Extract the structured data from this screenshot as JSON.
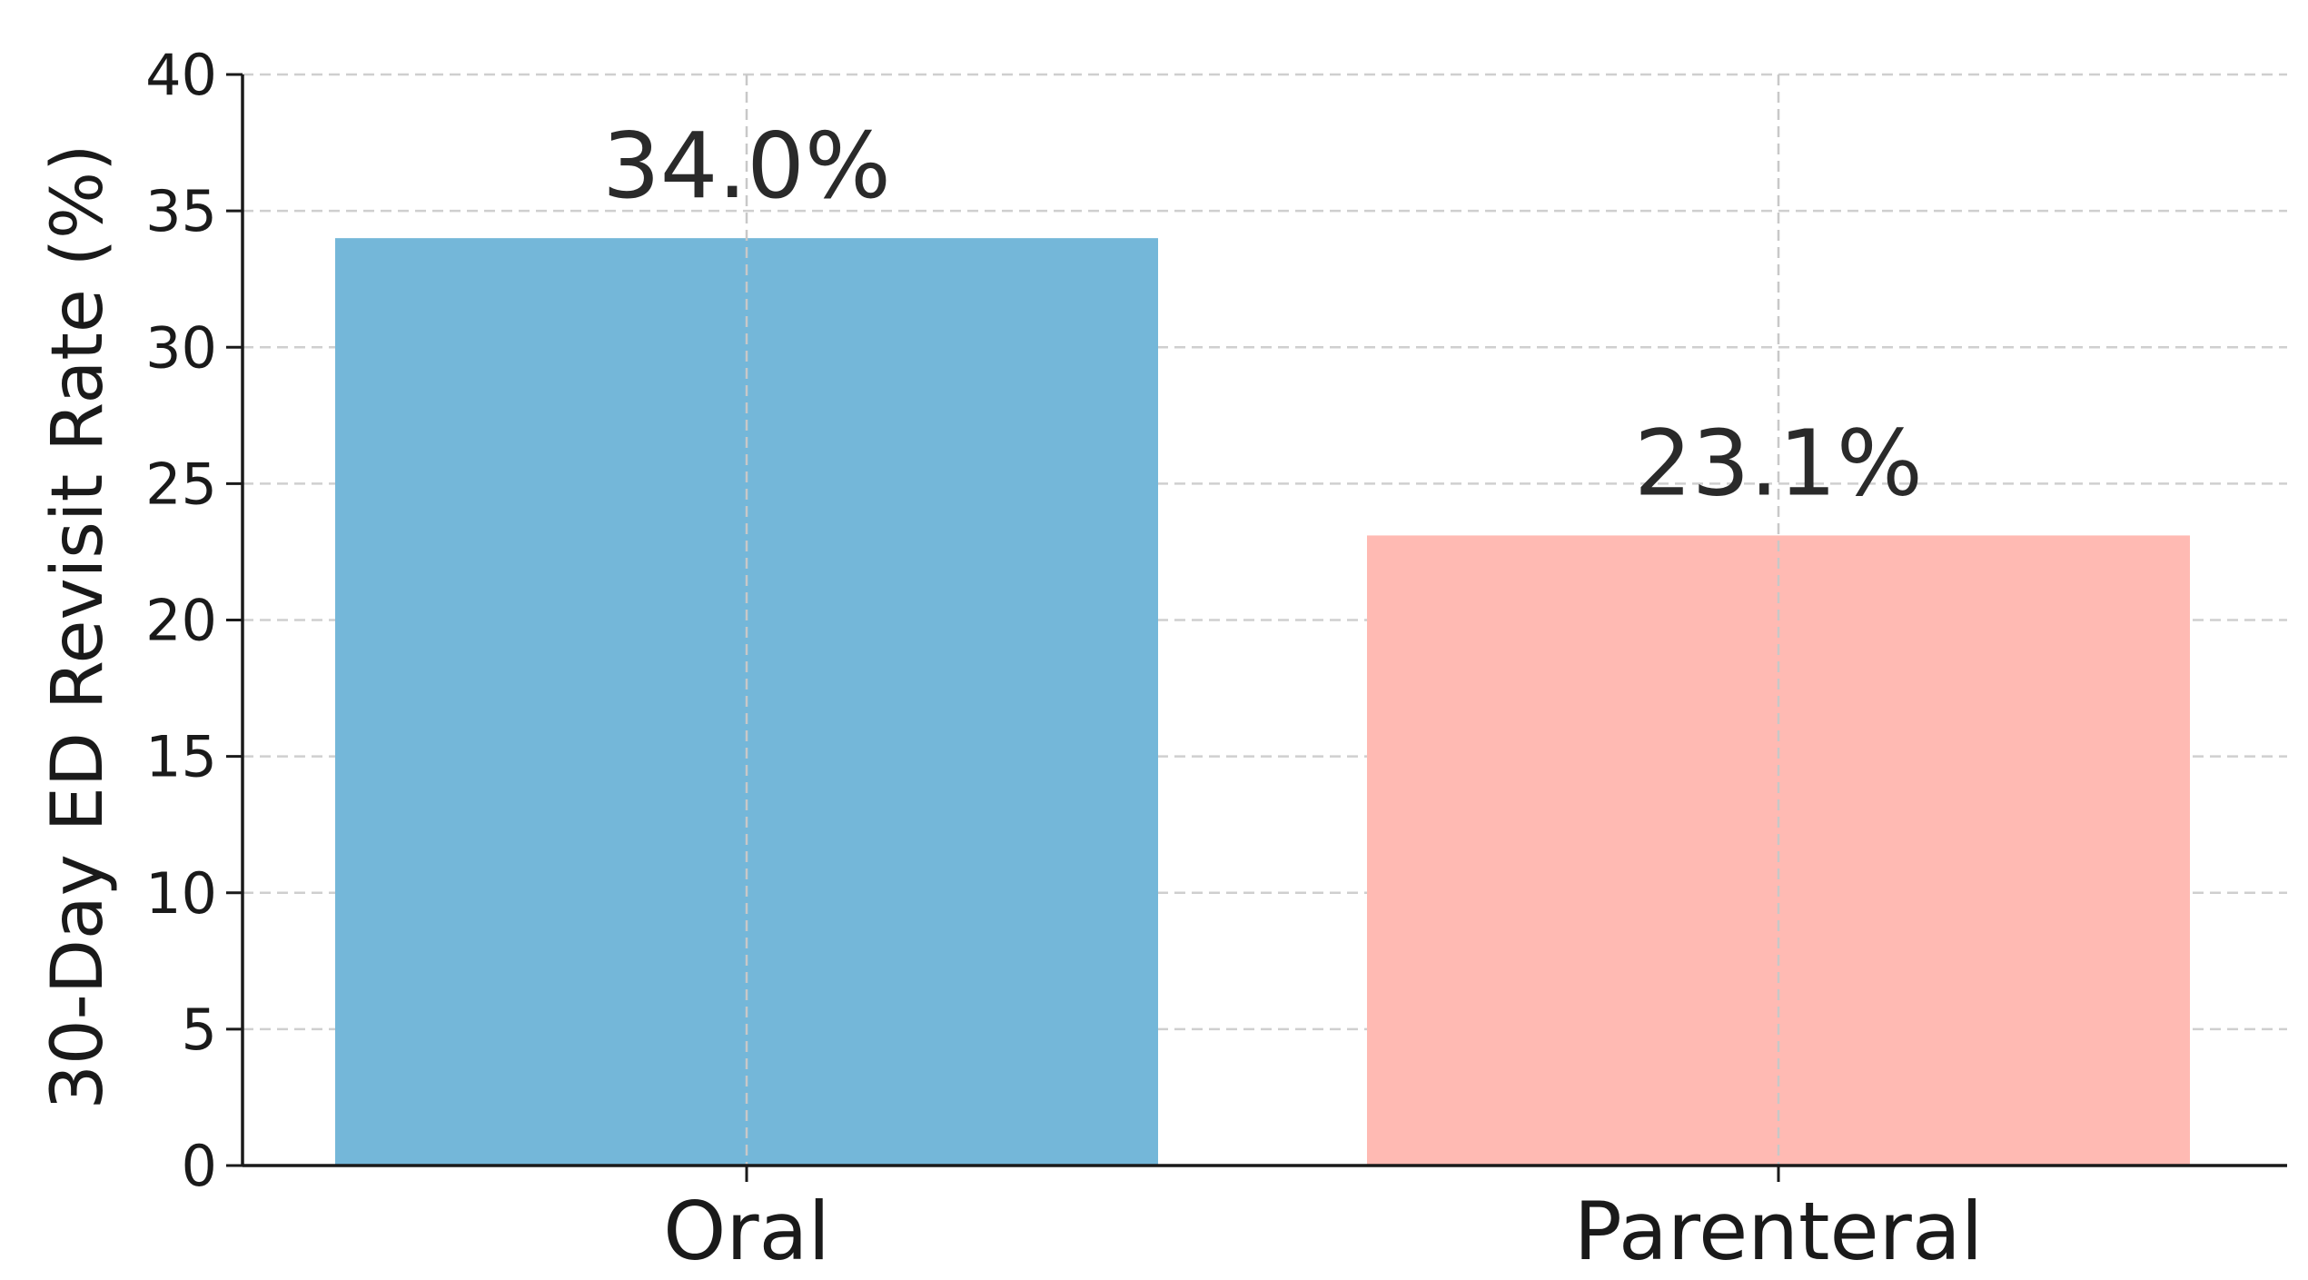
{
  "chart_data": {
    "type": "bar",
    "title": "",
    "xlabel": "",
    "ylabel": "30-Day ED Revisit Rate (%)",
    "categories": [
      "Oral",
      "Parenteral"
    ],
    "values": [
      34.0,
      23.1
    ],
    "data_labels": [
      "34.0%",
      "23.1%"
    ],
    "colors": [
      "#74b7d9",
      "#ffbab3"
    ],
    "ylim": [
      0,
      40
    ],
    "yticks": [
      0,
      5,
      10,
      15,
      20,
      25,
      30,
      35,
      40
    ],
    "ytick_labels": [
      "0",
      "5",
      "10",
      "15",
      "20",
      "25",
      "30",
      "35",
      "40"
    ],
    "grid": true,
    "legend": "none"
  }
}
